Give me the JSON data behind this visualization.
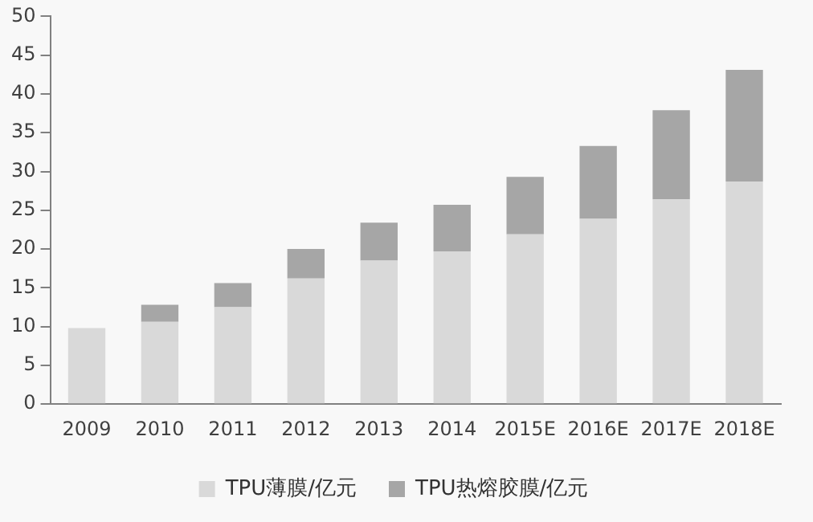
{
  "chart_data": {
    "type": "bar",
    "stacked": true,
    "categories": [
      "2009",
      "2010",
      "2011",
      "2012",
      "2013",
      "2014",
      "2015E",
      "2016E",
      "2017E",
      "2018E"
    ],
    "series": [
      {
        "name": "TPU薄膜/亿元",
        "color": "#d9d9d9",
        "values": [
          9.8,
          10.6,
          12.5,
          16.2,
          18.5,
          19.7,
          21.9,
          23.9,
          26.4,
          28.7
        ]
      },
      {
        "name": "TPU热熔胶膜/亿元",
        "color": "#a6a6a6",
        "values": [
          null,
          2.2,
          3.1,
          3.8,
          4.9,
          6.0,
          7.4,
          9.4,
          11.5,
          14.4
        ]
      }
    ],
    "ylim": [
      0,
      50
    ],
    "yticks": [
      0,
      5,
      10,
      15,
      20,
      25,
      30,
      35,
      40,
      45,
      50
    ],
    "grid": false,
    "legend": "bottom"
  }
}
